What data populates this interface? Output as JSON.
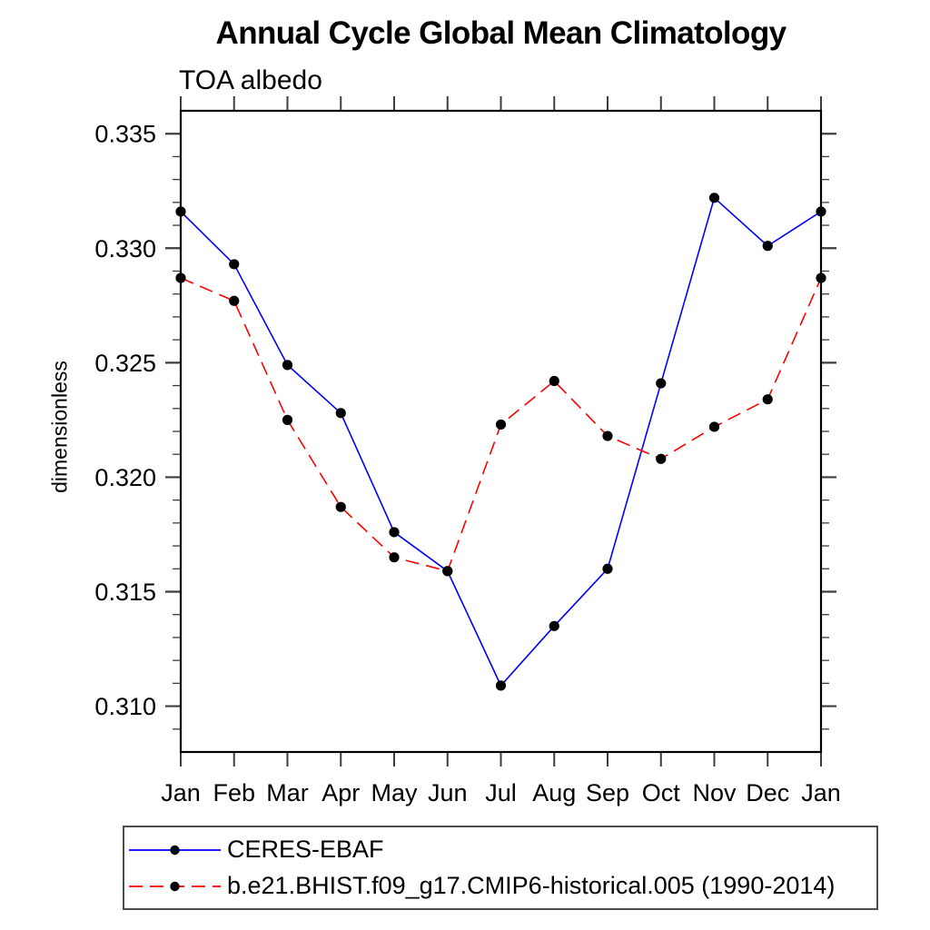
{
  "chart_data": {
    "type": "line",
    "title": "Annual Cycle Global Mean Climatology",
    "subtitle": "TOA albedo",
    "ylabel": "dimensionless",
    "xlabel": "",
    "categories": [
      "Jan",
      "Feb",
      "Mar",
      "Apr",
      "May",
      "Jun",
      "Jul",
      "Aug",
      "Sep",
      "Oct",
      "Nov",
      "Dec",
      "Jan"
    ],
    "series": [
      {
        "name": "CERES-EBAF",
        "color": "#0000ff",
        "line_style": "solid",
        "marker": "filled-circle",
        "marker_color": "#000000",
        "values": [
          0.3316,
          0.3293,
          0.3249,
          0.3228,
          0.3176,
          0.3159,
          0.3109,
          0.3135,
          0.316,
          0.3241,
          0.3322,
          0.3301,
          0.3316
        ]
      },
      {
        "name": "b.e21.BHIST.f09_g17.CMIP6-historical.005 (1990-2014)",
        "color": "#ff0000",
        "line_style": "dashed",
        "marker": "filled-circle",
        "marker_color": "#000000",
        "values": [
          0.3287,
          0.3277,
          0.3225,
          0.3187,
          0.3165,
          0.3159,
          0.3223,
          0.3242,
          0.3218,
          0.3208,
          0.3222,
          0.3234,
          0.3287
        ]
      }
    ],
    "ylim": [
      0.308,
      0.336
    ],
    "yticks_major": {
      "values": [
        0.31,
        0.315,
        0.32,
        0.325,
        0.33,
        0.335
      ],
      "labels": [
        "0.310",
        "0.315",
        "0.320",
        "0.325",
        "0.330",
        "0.335"
      ]
    },
    "ytick_minor_step": 0.001,
    "grid": false,
    "legend_position": "bottom-left",
    "frame_color": "#000000",
    "tick_color": "#3d3d3d"
  }
}
